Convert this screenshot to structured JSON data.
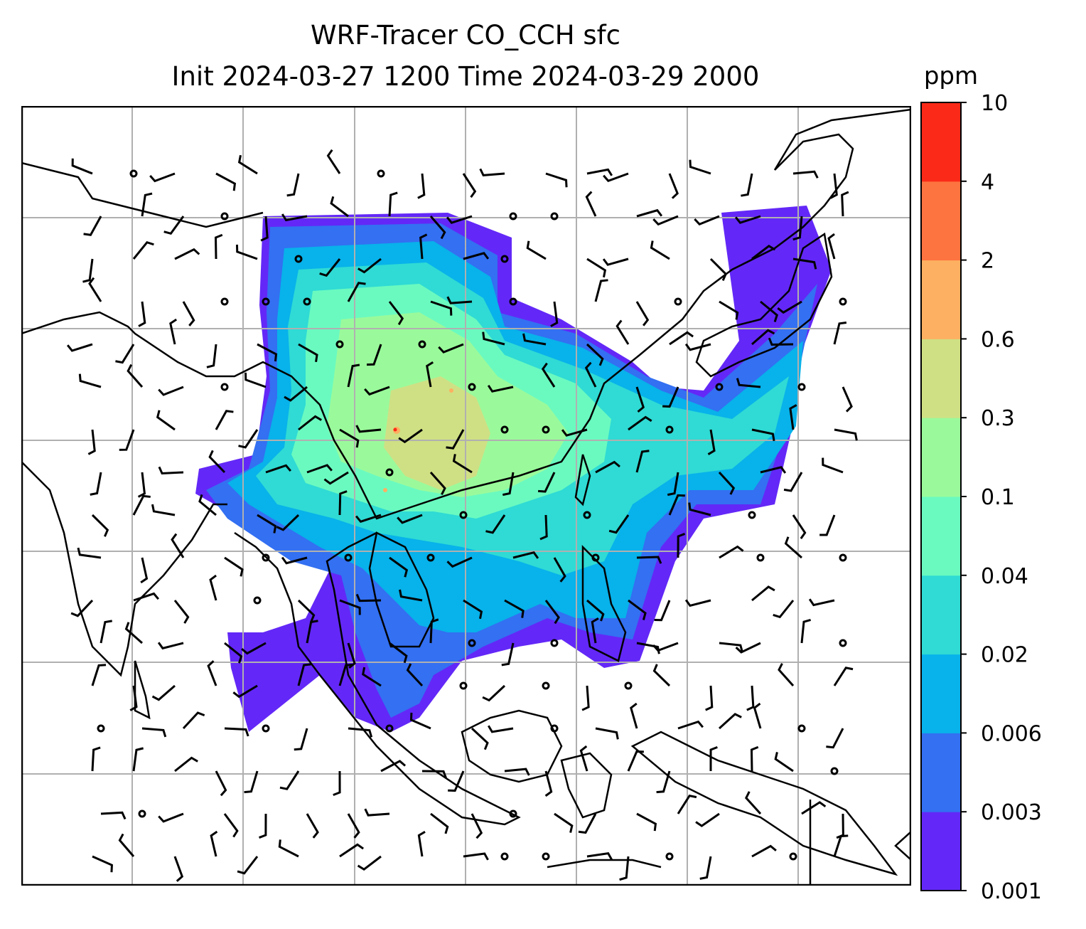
{
  "title": {
    "line1": "WRF-Tracer CO_CCH sfc",
    "line2": "Init 2024-03-27 1200 Time 2024-03-29 2000"
  },
  "colorbar": {
    "unit": "ppm",
    "levels": [
      "0.001",
      "0.003",
      "0.006",
      "0.02",
      "0.04",
      "0.1",
      "0.3",
      "0.6",
      "2",
      "4",
      "10"
    ],
    "colors": [
      "#6328f7",
      "#3370f2",
      "#08b2ea",
      "#2fdbd4",
      "#6afac0",
      "#9afa9b",
      "#cfe084",
      "#fdb061",
      "#fe7440",
      "#fb2a18"
    ]
  },
  "map": {
    "field": "CO_CCH tracer concentration at surface (filled contours) with wind barbs",
    "coastline_color": "#000000",
    "grid_color": "#b0b0b0"
  }
}
